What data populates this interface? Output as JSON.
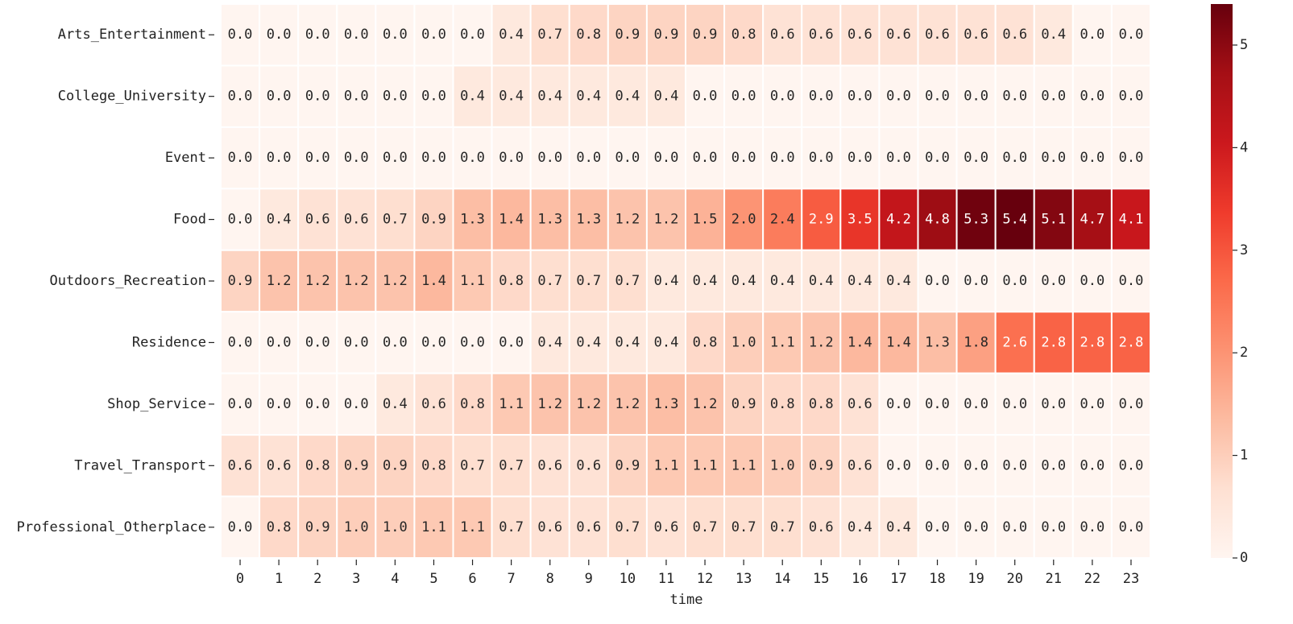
{
  "chart_data": {
    "type": "heatmap",
    "xlabel": "time",
    "colormap": "Reds",
    "x": [
      0,
      1,
      2,
      3,
      4,
      5,
      6,
      7,
      8,
      9,
      10,
      11,
      12,
      13,
      14,
      15,
      16,
      17,
      18,
      19,
      20,
      21,
      22,
      23
    ],
    "xlim": [
      -0.5,
      23.5
    ],
    "zlim": [
      0,
      5.4
    ],
    "zticks": [
      0,
      1,
      2,
      3,
      4,
      5
    ],
    "series": [
      {
        "name": "Arts_Entertainment",
        "values": [
          0,
          0,
          0,
          0,
          0,
          0,
          0,
          0.4,
          0.7,
          0.8,
          0.9,
          0.9,
          0.9,
          0.8,
          0.6,
          0.6,
          0.6,
          0.6,
          0.6,
          0.6,
          0.6,
          0.4,
          0,
          0
        ],
        "value_labels": [
          "0.0",
          "0.0",
          "0.0",
          "0.0",
          "0.0",
          "0.0",
          "0.0",
          "0.4",
          "0.7",
          "0.8",
          "0.9",
          "0.9",
          "0.9",
          "0.8",
          "0.6",
          "0.6",
          "0.6",
          "0.6",
          "0.6",
          "0.6",
          "0.6",
          "0.4",
          "0.0",
          "0.0"
        ]
      },
      {
        "name": "College_University",
        "values": [
          0,
          0,
          0,
          0,
          0,
          0,
          0.4,
          0.4,
          0.4,
          0.4,
          0.4,
          0.4,
          0,
          0,
          0,
          0,
          0,
          0,
          0,
          0,
          0,
          0,
          0,
          0
        ],
        "value_labels": [
          "0.0",
          "0.0",
          "0.0",
          "0.0",
          "0.0",
          "0.0",
          "0.4",
          "0.4",
          "0.4",
          "0.4",
          "0.4",
          "0.4",
          "0.0",
          "0.0",
          "0.0",
          "0.0",
          "0.0",
          "0.0",
          "0.0",
          "0.0",
          "0.0",
          "0.0",
          "0.0",
          "0.0"
        ]
      },
      {
        "name": "Event",
        "values": [
          0,
          0,
          0,
          0,
          0,
          0,
          0,
          0,
          0,
          0,
          0,
          0,
          0,
          0,
          0,
          0,
          0,
          0,
          0,
          0,
          0,
          0,
          0,
          0
        ],
        "value_labels": [
          "0.0",
          "0.0",
          "0.0",
          "0.0",
          "0.0",
          "0.0",
          "0.0",
          "0.0",
          "0.0",
          "0.0",
          "0.0",
          "0.0",
          "0.0",
          "0.0",
          "0.0",
          "0.0",
          "0.0",
          "0.0",
          "0.0",
          "0.0",
          "0.0",
          "0.0",
          "0.0",
          "0.0"
        ]
      },
      {
        "name": "Food",
        "values": [
          0,
          0.4,
          0.6,
          0.6,
          0.7,
          0.9,
          1.3,
          1.4,
          1.3,
          1.3,
          1.2,
          1.2,
          1.5,
          2.0,
          2.4,
          2.9,
          3.5,
          4.2,
          4.8,
          5.3,
          5.4,
          5.1,
          4.7,
          4.1
        ],
        "value_labels": [
          "0.0",
          "0.4",
          "0.6",
          "0.6",
          "0.7",
          "0.9",
          "1.3",
          "1.4",
          "1.3",
          "1.3",
          "1.2",
          "1.2",
          "1.5",
          "2.0",
          "2.4",
          "2.9",
          "3.5",
          "4.2",
          "4.8",
          "5.3",
          "5.4",
          "5.1",
          "4.7",
          "4.1"
        ]
      },
      {
        "name": "Outdoors_Recreation",
        "values": [
          0.9,
          1.2,
          1.2,
          1.2,
          1.2,
          1.4,
          1.1,
          0.8,
          0.7,
          0.7,
          0.7,
          0.4,
          0.4,
          0.4,
          0.4,
          0.4,
          0.4,
          0.4,
          0,
          0,
          0,
          0,
          0,
          0
        ],
        "value_labels": [
          "0.9",
          "1.2",
          "1.2",
          "1.2",
          "1.2",
          "1.4",
          "1.1",
          "0.8",
          "0.7",
          "0.7",
          "0.7",
          "0.4",
          "0.4",
          "0.4",
          "0.4",
          "0.4",
          "0.4",
          "0.4",
          "0.0",
          "0.0",
          "0.0",
          "0.0",
          "0.0",
          "0.0"
        ]
      },
      {
        "name": "Residence",
        "values": [
          0,
          0,
          0,
          0,
          0,
          0,
          0,
          0,
          0.4,
          0.4,
          0.4,
          0.4,
          0.8,
          1.0,
          1.1,
          1.2,
          1.4,
          1.4,
          1.3,
          1.8,
          2.6,
          2.8,
          2.8,
          2.8
        ],
        "value_labels": [
          "0.0",
          "0.0",
          "0.0",
          "0.0",
          "0.0",
          "0.0",
          "0.0",
          "0.0",
          "0.4",
          "0.4",
          "0.4",
          "0.4",
          "0.8",
          "1.0",
          "1.1",
          "1.2",
          "1.4",
          "1.4",
          "1.3",
          "1.8",
          "2.6",
          "2.8",
          "2.8",
          "2.8"
        ]
      },
      {
        "name": "Shop_Service",
        "values": [
          0,
          0,
          0,
          0,
          0.4,
          0.6,
          0.8,
          1.1,
          1.2,
          1.2,
          1.2,
          1.3,
          1.2,
          0.9,
          0.8,
          0.8,
          0.6,
          0,
          0,
          0,
          0,
          0,
          0,
          0
        ],
        "value_labels": [
          "0.0",
          "0.0",
          "0.0",
          "0.0",
          "0.4",
          "0.6",
          "0.8",
          "1.1",
          "1.2",
          "1.2",
          "1.2",
          "1.3",
          "1.2",
          "0.9",
          "0.8",
          "0.8",
          "0.6",
          "0.0",
          "0.0",
          "0.0",
          "0.0",
          "0.0",
          "0.0",
          "0.0"
        ]
      },
      {
        "name": "Travel_Transport",
        "values": [
          0.6,
          0.6,
          0.8,
          0.9,
          0.9,
          0.8,
          0.7,
          0.7,
          0.6,
          0.6,
          0.9,
          1.1,
          1.1,
          1.1,
          1.0,
          0.9,
          0.6,
          0,
          0,
          0,
          0,
          0,
          0,
          0
        ],
        "value_labels": [
          "0.6",
          "0.6",
          "0.8",
          "0.9",
          "0.9",
          "0.8",
          "0.7",
          "0.7",
          "0.6",
          "0.6",
          "0.9",
          "1.1",
          "1.1",
          "1.1",
          "1.0",
          "0.9",
          "0.6",
          "0.0",
          "0.0",
          "0.0",
          "0.0",
          "0.0",
          "0.0",
          "0.0"
        ]
      },
      {
        "name": "Professional_Otherplace",
        "values": [
          0,
          0.8,
          0.9,
          1.0,
          1.0,
          1.1,
          1.1,
          0.7,
          0.6,
          0.6,
          0.7,
          0.6,
          0.7,
          0.7,
          0.7,
          0.6,
          0.4,
          0.4,
          0,
          0,
          0,
          0,
          0,
          0
        ],
        "value_labels": [
          "0.0",
          "0.8",
          "0.9",
          "1.0",
          "1.0",
          "1.1",
          "1.1",
          "0.7",
          "0.6",
          "0.6",
          "0.7",
          "0.6",
          "0.7",
          "0.7",
          "0.7",
          "0.6",
          "0.4",
          "0.4",
          "0.0",
          "0.0",
          "0.0",
          "0.0",
          "0.0",
          "0.0"
        ]
      }
    ]
  }
}
